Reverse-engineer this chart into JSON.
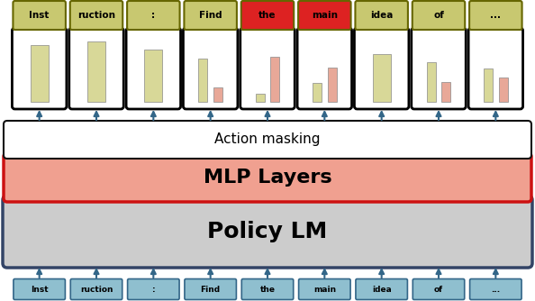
{
  "tokens": [
    "Inst",
    "ruction",
    ":",
    "Find",
    "the",
    "main",
    "idea",
    "of",
    "..."
  ],
  "top_token_colors": [
    "#c8c870",
    "#c8c870",
    "#c8c870",
    "#c8c870",
    "#dd2222",
    "#dd2222",
    "#c8c870",
    "#c8c870",
    "#c8c870"
  ],
  "bottom_token_color": "#8fbfcf",
  "top_token_border": "#666600",
  "bottom_token_border": "#336688",
  "action_masking_label": "Action masking",
  "mlp_label": "MLP Layers",
  "policy_lm_label": "Policy LM",
  "action_masking_fill": "#ffffff",
  "action_masking_border": "#111111",
  "mlp_fill": "#f0a090",
  "mlp_border": "#cc1111",
  "policy_lm_fill": "#cccccc",
  "policy_lm_border": "#334466",
  "bar_colors_green": "#d8d898",
  "bar_colors_salmon": "#e8a898",
  "background_color": "#ffffff",
  "arrow_color": "#336688",
  "figsize": [
    5.94,
    3.34
  ],
  "dpi": 100,
  "bar_data_refined": [
    [
      [
        0.85,
        "#d8d898"
      ]
    ],
    [
      [
        0.9,
        "#d8d898"
      ]
    ],
    [
      [
        0.78,
        "#d8d898"
      ]
    ],
    [
      [
        0.65,
        "#d8d898"
      ],
      [
        0.22,
        "#e8a898"
      ]
    ],
    [
      [
        0.12,
        "#d8d898"
      ],
      [
        0.68,
        "#e8a898"
      ]
    ],
    [
      [
        0.28,
        "#d8d898"
      ],
      [
        0.52,
        "#e8a898"
      ]
    ],
    [
      [
        0.72,
        "#d8d898"
      ]
    ],
    [
      [
        0.6,
        "#d8d898"
      ],
      [
        0.3,
        "#e8a898"
      ]
    ],
    [
      [
        0.5,
        "#d8d898"
      ],
      [
        0.36,
        "#e8a898"
      ]
    ]
  ]
}
